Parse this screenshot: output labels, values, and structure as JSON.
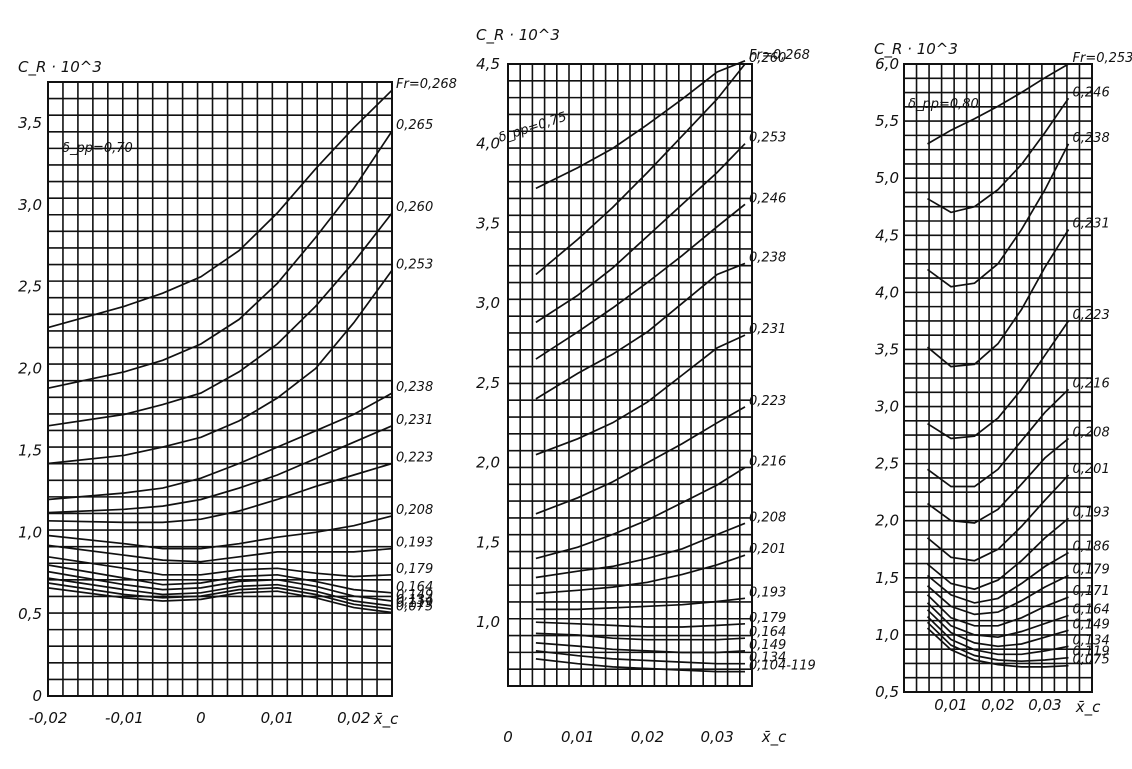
{
  "chart_data": [
    {
      "type": "line",
      "ylabel": "C_R · 10^3",
      "xlabel": "x̄_c",
      "param_label": "δ_pp=0,70",
      "xlim": [
        -0.02,
        0.025
      ],
      "ylim": [
        0,
        3.75
      ],
      "xticks": [
        -0.02,
        -0.01,
        0,
        0.01,
        0.02
      ],
      "xtick_labels": [
        "-0,02",
        "-0,01",
        "0",
        "0,01",
        "0,02"
      ],
      "yticks": [
        0,
        0.5,
        1.0,
        1.5,
        2.0,
        2.5,
        3.0,
        3.5
      ],
      "ytick_labels": [
        "0",
        "0,5",
        "1,0",
        "1,5",
        "2,0",
        "2,5",
        "3,0",
        "3,5"
      ],
      "x": [
        -0.02,
        -0.01,
        -0.005,
        0,
        0.005,
        0.01,
        0.015,
        0.02,
        0.025
      ],
      "series": [
        {
          "name": "Fr=0,268",
          "values": [
            2.25,
            2.38,
            2.46,
            2.56,
            2.72,
            2.95,
            3.22,
            3.47,
            3.7
          ]
        },
        {
          "name": "0,265",
          "values": [
            1.88,
            1.98,
            2.05,
            2.15,
            2.3,
            2.52,
            2.8,
            3.1,
            3.45
          ]
        },
        {
          "name": "0,260",
          "values": [
            1.65,
            1.72,
            1.78,
            1.85,
            1.98,
            2.15,
            2.38,
            2.65,
            2.95
          ]
        },
        {
          "name": "0,253",
          "values": [
            1.42,
            1.47,
            1.52,
            1.58,
            1.68,
            1.82,
            2.0,
            2.28,
            2.6
          ]
        },
        {
          "name": "0,238",
          "values": [
            1.2,
            1.24,
            1.27,
            1.33,
            1.42,
            1.52,
            1.62,
            1.72,
            1.85
          ]
        },
        {
          "name": "0,231",
          "values": [
            1.12,
            1.14,
            1.16,
            1.2,
            1.27,
            1.35,
            1.45,
            1.55,
            1.65
          ]
        },
        {
          "name": "0,223",
          "values": [
            1.07,
            1.06,
            1.06,
            1.08,
            1.13,
            1.2,
            1.28,
            1.35,
            1.42
          ]
        },
        {
          "name": "0,208",
          "values": [
            0.98,
            0.93,
            0.9,
            0.9,
            0.93,
            0.97,
            1.0,
            1.04,
            1.1
          ]
        },
        {
          "name": "0,193",
          "values": [
            0.92,
            0.86,
            0.83,
            0.82,
            0.85,
            0.88,
            0.88,
            0.88,
            0.9
          ]
        },
        {
          "name": "0,179",
          "values": [
            0.85,
            0.78,
            0.74,
            0.74,
            0.77,
            0.78,
            0.75,
            0.73,
            0.74
          ]
        },
        {
          "name": "0,164",
          "values": [
            0.8,
            0.72,
            0.68,
            0.69,
            0.73,
            0.74,
            0.7,
            0.65,
            0.63
          ]
        },
        {
          "name": "0,149",
          "values": [
            0.76,
            0.68,
            0.65,
            0.66,
            0.7,
            0.71,
            0.67,
            0.61,
            0.58
          ]
        },
        {
          "name": "0,134",
          "values": [
            0.72,
            0.65,
            0.62,
            0.63,
            0.67,
            0.68,
            0.64,
            0.58,
            0.55
          ]
        },
        {
          "name": "0,119",
          "values": [
            0.69,
            0.62,
            0.6,
            0.61,
            0.65,
            0.66,
            0.62,
            0.56,
            0.53
          ]
        },
        {
          "name": "0,075",
          "values": [
            0.66,
            0.6,
            0.58,
            0.59,
            0.63,
            0.64,
            0.6,
            0.54,
            0.51
          ]
        }
      ]
    },
    {
      "type": "line",
      "ylabel": "C_R · 10^3",
      "xlabel": "x̄_c",
      "param_label": "δ_pp=0,75",
      "xlim": [
        0,
        0.035
      ],
      "ylim": [
        0.6,
        4.5
      ],
      "xticks": [
        0,
        0.01,
        0.02,
        0.03
      ],
      "xtick_labels": [
        "0",
        "0,01",
        "0,02",
        "0,03"
      ],
      "yticks": [
        1.0,
        1.5,
        2.0,
        2.5,
        3.0,
        3.5,
        4.0,
        4.5
      ],
      "ytick_labels": [
        "1,0",
        "1,5",
        "2,0",
        "2,5",
        "3,0",
        "3,5",
        "4,0",
        "4,5"
      ],
      "x": [
        0.004,
        0.01,
        0.015,
        0.02,
        0.025,
        0.03,
        0.034
      ],
      "series": [
        {
          "name": "Fr=0,268",
          "values": [
            3.72,
            3.85,
            3.97,
            4.12,
            4.28,
            4.45,
            4.52
          ]
        },
        {
          "name": "0,260",
          "values": [
            3.18,
            3.4,
            3.6,
            3.82,
            4.05,
            4.28,
            4.5
          ]
        },
        {
          "name": "0,253",
          "values": [
            2.88,
            3.05,
            3.22,
            3.42,
            3.62,
            3.82,
            4.0
          ]
        },
        {
          "name": "0,246",
          "values": [
            2.65,
            2.82,
            2.97,
            3.13,
            3.3,
            3.48,
            3.62
          ]
        },
        {
          "name": "0,238",
          "values": [
            2.4,
            2.56,
            2.68,
            2.82,
            3.0,
            3.18,
            3.25
          ]
        },
        {
          "name": "0,231",
          "values": [
            2.05,
            2.15,
            2.25,
            2.38,
            2.55,
            2.72,
            2.8
          ]
        },
        {
          "name": "0,223",
          "values": [
            1.68,
            1.78,
            1.88,
            2.0,
            2.12,
            2.25,
            2.35
          ]
        },
        {
          "name": "0,216",
          "values": [
            1.4,
            1.47,
            1.55,
            1.64,
            1.75,
            1.86,
            1.97
          ]
        },
        {
          "name": "0,208",
          "values": [
            1.28,
            1.32,
            1.35,
            1.4,
            1.46,
            1.55,
            1.62
          ]
        },
        {
          "name": "0,201",
          "values": [
            1.18,
            1.2,
            1.22,
            1.25,
            1.3,
            1.36,
            1.42
          ]
        },
        {
          "name": "0,193",
          "values": [
            1.08,
            1.08,
            1.09,
            1.1,
            1.11,
            1.13,
            1.15
          ]
        },
        {
          "name": "0,179",
          "values": [
            1.0,
            0.99,
            0.98,
            0.97,
            0.97,
            0.98,
            0.99
          ]
        },
        {
          "name": "0,164",
          "values": [
            0.93,
            0.92,
            0.9,
            0.89,
            0.89,
            0.89,
            0.9
          ]
        },
        {
          "name": "0,149",
          "values": [
            0.87,
            0.85,
            0.83,
            0.82,
            0.81,
            0.81,
            0.82
          ]
        },
        {
          "name": "0,134",
          "values": [
            0.82,
            0.79,
            0.77,
            0.76,
            0.75,
            0.74,
            0.74
          ]
        },
        {
          "name": "0,104-119",
          "values": [
            0.77,
            0.74,
            0.72,
            0.71,
            0.7,
            0.69,
            0.69
          ]
        }
      ]
    },
    {
      "type": "line",
      "ylabel": "C_R · 10^3",
      "xlabel": "x̄_c",
      "param_label": "δ_pp=0,80",
      "xlim": [
        0,
        0.04
      ],
      "ylim": [
        0.5,
        6.0
      ],
      "xticks": [
        0.01,
        0.02,
        0.03
      ],
      "xtick_labels": [
        "0,01",
        "0,02",
        "0,03"
      ],
      "yticks": [
        0.5,
        1.0,
        1.5,
        2.0,
        2.5,
        3.0,
        3.5,
        4.0,
        4.5,
        5.0,
        5.5,
        6.0
      ],
      "ytick_labels": [
        "0,5",
        "1,0",
        "1,5",
        "2,0",
        "2,5",
        "3,0",
        "3,5",
        "4,0",
        "4,5",
        "5,0",
        "5,5",
        "6,0"
      ],
      "x": [
        0.005,
        0.01,
        0.015,
        0.02,
        0.025,
        0.03,
        0.035
      ],
      "series": [
        {
          "name": "Fr=0,253",
          "values": [
            5.3,
            5.42,
            5.52,
            5.63,
            5.75,
            5.88,
            6.0
          ]
        },
        {
          "name": "0,246",
          "values": [
            4.82,
            4.7,
            4.75,
            4.9,
            5.12,
            5.4,
            5.7
          ]
        },
        {
          "name": "0,238",
          "values": [
            4.2,
            4.05,
            4.08,
            4.25,
            4.55,
            4.9,
            5.3
          ]
        },
        {
          "name": "0,231",
          "values": [
            3.52,
            3.35,
            3.37,
            3.55,
            3.85,
            4.22,
            4.55
          ]
        },
        {
          "name": "0,223",
          "values": [
            2.85,
            2.72,
            2.74,
            2.9,
            3.15,
            3.45,
            3.75
          ]
        },
        {
          "name": "0,216",
          "values": [
            2.45,
            2.3,
            2.3,
            2.45,
            2.7,
            2.95,
            3.15
          ]
        },
        {
          "name": "0,208",
          "values": [
            2.15,
            2.0,
            1.98,
            2.1,
            2.32,
            2.55,
            2.72
          ]
        },
        {
          "name": "0,201",
          "values": [
            1.85,
            1.68,
            1.65,
            1.75,
            1.95,
            2.18,
            2.4
          ]
        },
        {
          "name": "0,193",
          "values": [
            1.62,
            1.45,
            1.4,
            1.48,
            1.65,
            1.85,
            2.02
          ]
        },
        {
          "name": "0,186",
          "values": [
            1.52,
            1.35,
            1.28,
            1.32,
            1.45,
            1.6,
            1.72
          ]
        },
        {
          "name": "0,179",
          "values": [
            1.43,
            1.25,
            1.18,
            1.2,
            1.3,
            1.42,
            1.52
          ]
        },
        {
          "name": "0,171",
          "values": [
            1.35,
            1.15,
            1.08,
            1.08,
            1.15,
            1.25,
            1.33
          ]
        },
        {
          "name": "0,164",
          "values": [
            1.28,
            1.08,
            1.0,
            0.98,
            1.03,
            1.1,
            1.17
          ]
        },
        {
          "name": "0,149",
          "values": [
            1.22,
            1.02,
            0.93,
            0.9,
            0.92,
            0.98,
            1.04
          ]
        },
        {
          "name": "0,134",
          "values": [
            1.16,
            0.96,
            0.87,
            0.83,
            0.83,
            0.86,
            0.9
          ]
        },
        {
          "name": "0,119",
          "values": [
            1.11,
            0.91,
            0.82,
            0.78,
            0.77,
            0.78,
            0.8
          ]
        },
        {
          "name": "0,075",
          "values": [
            1.06,
            0.87,
            0.78,
            0.74,
            0.72,
            0.72,
            0.73
          ]
        }
      ]
    }
  ]
}
